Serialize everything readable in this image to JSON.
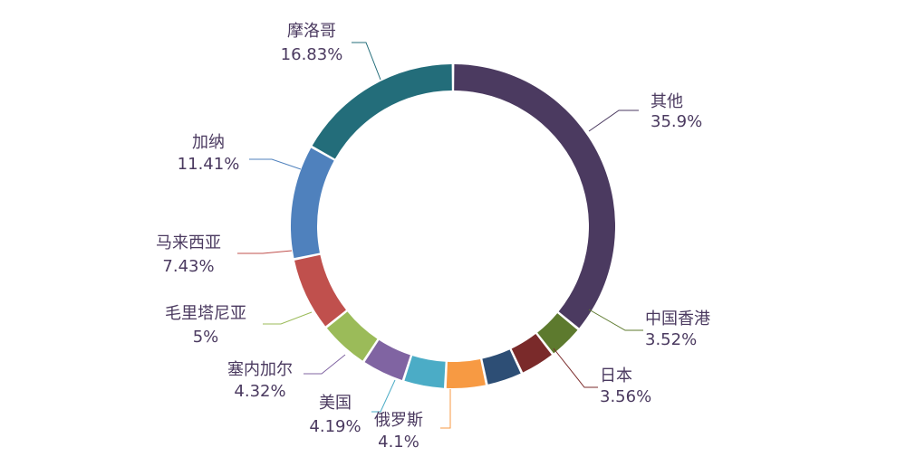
{
  "chart_data": {
    "type": "pie",
    "donut": true,
    "title": "",
    "legend": "none",
    "slices": [
      {
        "label": "其他",
        "value": 35.9,
        "display": "35.9%",
        "color": "#4b3a60"
      },
      {
        "label": "中国香港",
        "value": 3.52,
        "display": "3.52%",
        "color": "#5d7a2e"
      },
      {
        "label": "日本",
        "value": 3.56,
        "display": "3.56%",
        "color": "#7a2a2a"
      },
      {
        "label": "",
        "value": 3.63,
        "display": "",
        "color": "#2d4e75"
      },
      {
        "label": "俄罗斯",
        "value": 4.1,
        "display": "4.1%",
        "color": "#f79a43"
      },
      {
        "label": "美国",
        "value": 4.19,
        "display": "4.19%",
        "color": "#4bacc6"
      },
      {
        "label": "塞内加尔",
        "value": 4.32,
        "display": "4.32%",
        "color": "#8064a2"
      },
      {
        "label": "毛里塔尼亚",
        "value": 5,
        "display": "5%",
        "color": "#9bbb59"
      },
      {
        "label": "马来西亚",
        "value": 7.43,
        "display": "7.43%",
        "color": "#c0504d"
      },
      {
        "label": "加纳",
        "value": 11.41,
        "display": "11.41%",
        "color": "#4f81bd"
      },
      {
        "label": "摩洛哥",
        "value": 16.83,
        "display": "16.83%",
        "color": "#236d7a"
      }
    ]
  }
}
